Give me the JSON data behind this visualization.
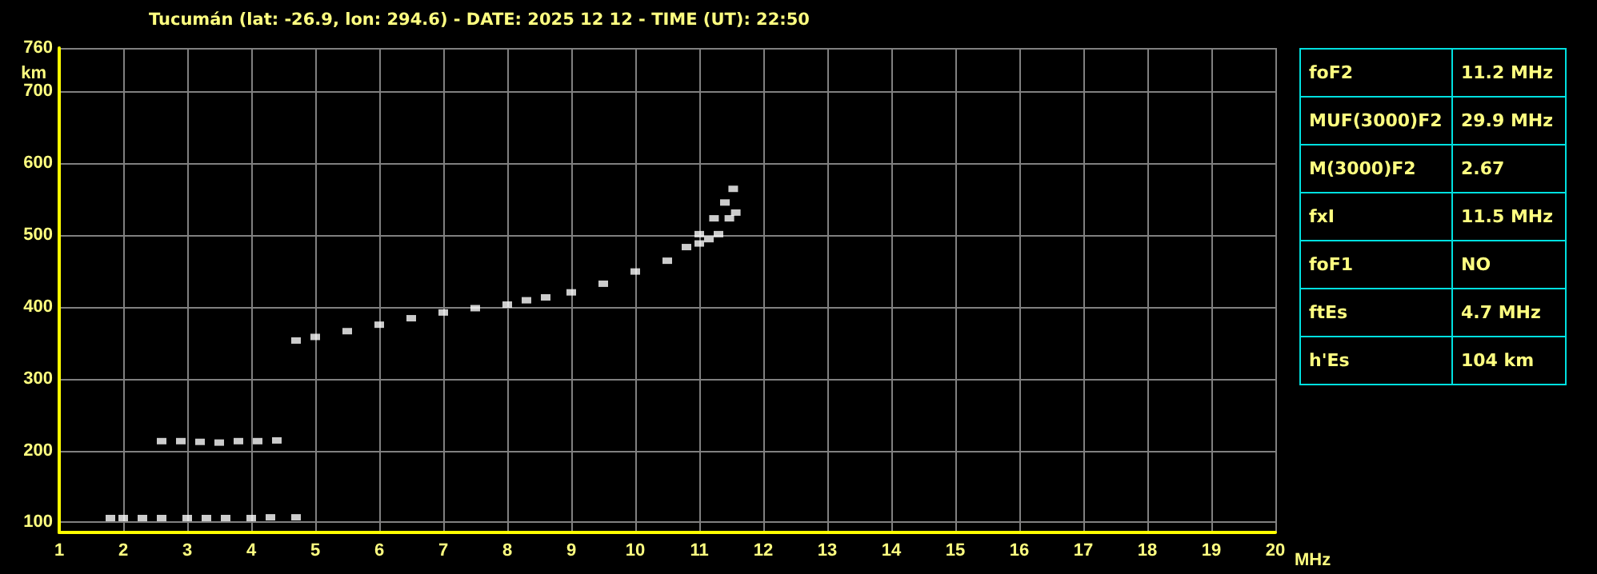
{
  "chart_data": [
    {
      "type": "scatter",
      "title": "Tucumán (lat: -26.9, lon: 294.6) - DATE: 2025 12 12 - TIME (UT): 22:50",
      "xlabel": "MHz",
      "ylabel": "km",
      "xlim": [
        1,
        20
      ],
      "xticks": [
        1,
        2,
        3,
        4,
        5,
        6,
        7,
        8,
        9,
        10,
        11,
        12,
        13,
        14,
        15,
        16,
        17,
        18,
        19,
        20
      ],
      "ylim": [
        86,
        760
      ],
      "yticks": [
        100,
        200,
        300,
        400,
        500,
        600,
        700,
        760
      ],
      "grid": true,
      "marker": "square",
      "series": [
        {
          "color": "#ffffff",
          "x": [
            1.8,
            2.0,
            2.3,
            2.6,
            3.0,
            3.3,
            3.6,
            4.0,
            4.3,
            4.7
          ],
          "values": [
            106,
            106,
            106,
            106,
            106,
            106,
            106,
            106,
            107,
            107
          ]
        },
        {
          "color": "#ffffff",
          "x": [
            2.6,
            2.9,
            3.2,
            3.5,
            3.8,
            4.1,
            4.4
          ],
          "values": [
            213,
            213,
            212,
            211,
            213,
            213,
            214
          ]
        },
        {
          "color": "#ffffff",
          "x": [
            4.7,
            5.0,
            5.5,
            6.0,
            6.5,
            7.0,
            7.5,
            8.0,
            8.3,
            8.6,
            9.0,
            9.5,
            10.0,
            10.5,
            10.8,
            11.0,
            11.23,
            11.4,
            11.53
          ],
          "values": [
            353,
            358,
            366,
            375,
            384,
            392,
            398,
            403,
            409,
            413,
            420,
            432,
            449,
            464,
            483,
            501,
            523,
            545,
            564
          ]
        },
        {
          "color": "#ffffff",
          "x": [
            11.0,
            11.15,
            11.3,
            11.47,
            11.57
          ],
          "values": [
            488,
            494,
            501,
            523,
            531
          ]
        }
      ]
    },
    {
      "type": "other",
      "categories": [
        "foF2",
        "MUF(3000)F2",
        "M(3000)F2",
        "fxI",
        "foF1",
        "ftEs",
        "h'Es"
      ],
      "value_labels": [
        "11.2 MHz",
        "29.9 MHz",
        "2.67",
        "11.5 MHz",
        "NO",
        "4.7 MHz",
        "104 km"
      ]
    }
  ]
}
